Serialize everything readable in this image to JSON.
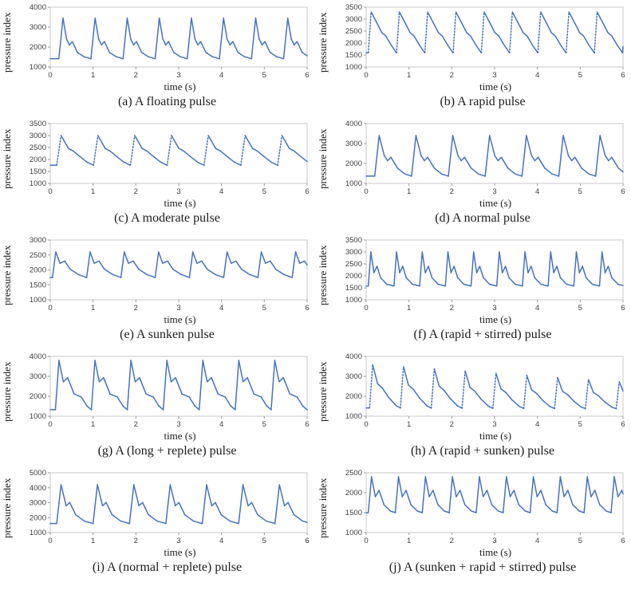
{
  "chart_data": [
    {
      "type": "line",
      "caption": "(a) A floating pulse",
      "xlabel": "time (s)",
      "ylabel": "pressure index",
      "xlim": [
        0,
        6
      ],
      "xticks": [
        0,
        1,
        2,
        3,
        4,
        5,
        6
      ],
      "ylim": [
        1000,
        4000
      ],
      "yticks": [
        1000,
        2000,
        3000,
        4000
      ],
      "line_color": "#4472C4",
      "grid": false,
      "legend": false,
      "pulse": {
        "start": 0.2,
        "period": 0.75,
        "base": 1350,
        "amp": 2100,
        "shape": [
          [
            0,
            0.03
          ],
          [
            0.13,
            1
          ],
          [
            0.24,
            0.5
          ],
          [
            0.33,
            0.36
          ],
          [
            0.42,
            0.44
          ],
          [
            0.58,
            0.18
          ],
          [
            0.78,
            0.08
          ],
          [
            1,
            0.03
          ]
        ]
      }
    },
    {
      "type": "line",
      "caption": "(b) A rapid pulse",
      "xlabel": "time (s)",
      "ylabel": "pressure index",
      "xlim": [
        0,
        6
      ],
      "xticks": [
        0,
        1,
        2,
        3,
        4,
        5,
        6
      ],
      "ylim": [
        1000,
        3500
      ],
      "yticks": [
        1000,
        1500,
        2000,
        2500,
        3000,
        3500
      ],
      "line_color": "#4472C4",
      "grid": false,
      "legend": false,
      "pulse": {
        "start": 0.05,
        "period": 0.66,
        "base": 1500,
        "amp": 1800,
        "dotted_rise": true,
        "shape": [
          [
            0,
            0.05
          ],
          [
            0.1,
            1
          ],
          [
            0.3,
            0.75
          ],
          [
            0.48,
            0.52
          ],
          [
            0.62,
            0.44
          ],
          [
            0.82,
            0.22
          ],
          [
            1,
            0.05
          ]
        ]
      }
    },
    {
      "type": "line",
      "caption": "(c) A moderate pulse",
      "xlabel": "time (s)",
      "ylabel": "pressure index",
      "xlim": [
        0,
        6
      ],
      "xticks": [
        0,
        1,
        2,
        3,
        4,
        5,
        6
      ],
      "ylim": [
        1000,
        3500
      ],
      "yticks": [
        1000,
        1500,
        2000,
        2500,
        3000,
        3500
      ],
      "line_color": "#4472C4",
      "grid": false,
      "legend": false,
      "pulse": {
        "start": 0.15,
        "period": 0.86,
        "base": 1650,
        "amp": 1350,
        "dotted_rise": true,
        "shape": [
          [
            0,
            0.08
          ],
          [
            0.12,
            1
          ],
          [
            0.32,
            0.6
          ],
          [
            0.45,
            0.52
          ],
          [
            0.62,
            0.36
          ],
          [
            0.82,
            0.18
          ],
          [
            1,
            0.08
          ]
        ]
      }
    },
    {
      "type": "line",
      "caption": "(d) A normal pulse",
      "xlabel": "time (s)",
      "ylabel": "pressure index",
      "xlim": [
        0,
        6
      ],
      "xticks": [
        0,
        1,
        2,
        3,
        4,
        5,
        6
      ],
      "ylim": [
        1000,
        4000
      ],
      "yticks": [
        1000,
        2000,
        3000,
        4000
      ],
      "line_color": "#4472C4",
      "grid": false,
      "legend": false,
      "pulse": {
        "start": 0.2,
        "period": 0.86,
        "base": 1300,
        "amp": 2100,
        "shape": [
          [
            0,
            0.03
          ],
          [
            0.12,
            1
          ],
          [
            0.26,
            0.52
          ],
          [
            0.35,
            0.4
          ],
          [
            0.44,
            0.48
          ],
          [
            0.62,
            0.22
          ],
          [
            0.82,
            0.08
          ],
          [
            1,
            0.03
          ]
        ]
      }
    },
    {
      "type": "line",
      "caption": "(e) A sunken pulse",
      "xlabel": "time (s)",
      "ylabel": "pressure index",
      "xlim": [
        0,
        6
      ],
      "xticks": [
        0,
        1,
        2,
        3,
        4,
        5,
        6
      ],
      "ylim": [
        1000,
        3000
      ],
      "yticks": [
        1000,
        1500,
        2000,
        2500,
        3000
      ],
      "line_color": "#4472C4",
      "grid": false,
      "legend": false,
      "pulse": {
        "start": 0.05,
        "period": 0.8,
        "base": 1700,
        "amp": 900,
        "shape": [
          [
            0,
            0.05
          ],
          [
            0.1,
            1
          ],
          [
            0.22,
            0.58
          ],
          [
            0.36,
            0.66
          ],
          [
            0.52,
            0.36
          ],
          [
            0.76,
            0.16
          ],
          [
            1,
            0.05
          ]
        ]
      }
    },
    {
      "type": "line",
      "caption": "(f) A (rapid + stirred) pulse",
      "xlabel": "time (s)",
      "ylabel": "pressure index",
      "xlim": [
        0,
        6
      ],
      "xticks": [
        0,
        1,
        2,
        3,
        4,
        5,
        6
      ],
      "ylim": [
        1000,
        3500
      ],
      "yticks": [
        1000,
        1500,
        2000,
        2500,
        3000,
        3500
      ],
      "line_color": "#4472C4",
      "grid": false,
      "legend": false,
      "pulse": {
        "start": 0.05,
        "period": 0.6,
        "base": 1500,
        "amp": 1500,
        "shape": [
          [
            0,
            0.05
          ],
          [
            0.1,
            1
          ],
          [
            0.22,
            0.42
          ],
          [
            0.34,
            0.6
          ],
          [
            0.48,
            0.28
          ],
          [
            0.72,
            0.1
          ],
          [
            1,
            0.05
          ]
        ]
      }
    },
    {
      "type": "line",
      "caption": "(g) A (long + replete) pulse",
      "xlabel": "time (s)",
      "ylabel": "pressure index",
      "xlim": [
        0,
        6
      ],
      "xticks": [
        0,
        1,
        2,
        3,
        4,
        5,
        6
      ],
      "ylim": [
        1000,
        4000
      ],
      "yticks": [
        1000,
        2000,
        3000,
        4000
      ],
      "line_color": "#4472C4",
      "grid": false,
      "legend": false,
      "pulse": {
        "start": 0.12,
        "period": 0.84,
        "base": 1250,
        "amp": 2550,
        "shape": [
          [
            0,
            0.03
          ],
          [
            0.1,
            1
          ],
          [
            0.22,
            0.58
          ],
          [
            0.34,
            0.66
          ],
          [
            0.52,
            0.34
          ],
          [
            0.72,
            0.28
          ],
          [
            0.88,
            0.1
          ],
          [
            1,
            0.03
          ]
        ]
      }
    },
    {
      "type": "line",
      "caption": "(h) A (rapid + sunken) pulse",
      "xlabel": "time (s)",
      "ylabel": "pressure index",
      "xlim": [
        0,
        6
      ],
      "xticks": [
        0,
        1,
        2,
        3,
        4,
        5,
        6
      ],
      "ylim": [
        1000,
        4000
      ],
      "yticks": [
        1000,
        2000,
        3000,
        4000
      ],
      "line_color": "#4472C4",
      "grid": false,
      "legend": false,
      "pulse": {
        "start": 0.08,
        "period": 0.72,
        "base": 1300,
        "amp": 2300,
        "amp_end": 1400,
        "dotted_rise": true,
        "shape": [
          [
            0,
            0.05
          ],
          [
            0.1,
            1
          ],
          [
            0.26,
            0.58
          ],
          [
            0.42,
            0.48
          ],
          [
            0.62,
            0.28
          ],
          [
            0.86,
            0.1
          ],
          [
            1,
            0.05
          ]
        ]
      }
    },
    {
      "type": "line",
      "caption": "(i) A (normal + replete) pulse",
      "xlabel": "time (s)",
      "ylabel": "pressure index",
      "xlim": [
        0,
        6
      ],
      "xticks": [
        0,
        1,
        2,
        3,
        4,
        5,
        6
      ],
      "ylim": [
        1000,
        5000
      ],
      "yticks": [
        1000,
        2000,
        3000,
        4000,
        5000
      ],
      "line_color": "#4472C4",
      "grid": false,
      "legend": false,
      "pulse": {
        "start": 0.15,
        "period": 0.85,
        "base": 1500,
        "amp": 2700,
        "shape": [
          [
            0,
            0.04
          ],
          [
            0.12,
            1
          ],
          [
            0.26,
            0.48
          ],
          [
            0.36,
            0.56
          ],
          [
            0.52,
            0.26
          ],
          [
            0.76,
            0.1
          ],
          [
            1,
            0.04
          ]
        ]
      }
    },
    {
      "type": "line",
      "caption": "(j) A (sunken + rapid + stirred) pulse",
      "xlabel": "time (s)",
      "ylabel": "pressure index",
      "xlim": [
        0,
        6
      ],
      "xticks": [
        0,
        1,
        2,
        3,
        4,
        5,
        6
      ],
      "ylim": [
        1000,
        2500
      ],
      "yticks": [
        1000,
        1500,
        2000,
        2500
      ],
      "line_color": "#4472C4",
      "grid": false,
      "legend": false,
      "pulse": {
        "start": 0.05,
        "period": 0.63,
        "base": 1400,
        "amp": 1000,
        "shape": [
          [
            0,
            0.1
          ],
          [
            0.12,
            1
          ],
          [
            0.26,
            0.5
          ],
          [
            0.4,
            0.66
          ],
          [
            0.58,
            0.3
          ],
          [
            0.82,
            0.14
          ],
          [
            1,
            0.1
          ]
        ]
      }
    }
  ]
}
